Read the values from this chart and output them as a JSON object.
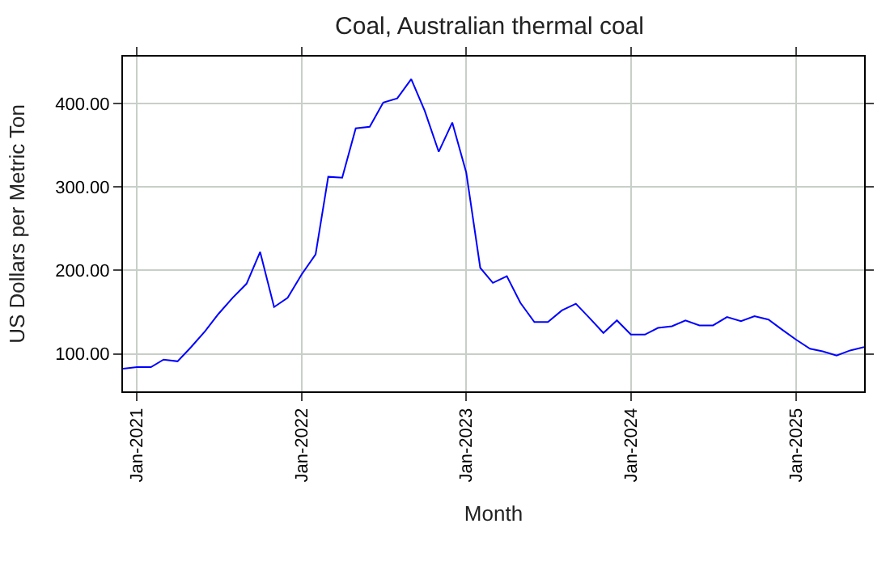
{
  "chart_data": {
    "type": "line",
    "title": "Coal, Australian thermal coal",
    "xlabel": "Month",
    "ylabel": "US Dollars per Metric Ton",
    "x": [
      "2020-12",
      "2021-01",
      "2021-02",
      "2021-03",
      "2021-04",
      "2021-05",
      "2021-06",
      "2021-07",
      "2021-08",
      "2021-09",
      "2021-10",
      "2021-11",
      "2021-12",
      "2022-01",
      "2022-02",
      "2022-03",
      "2022-04",
      "2022-05",
      "2022-06",
      "2022-07",
      "2022-08",
      "2022-09",
      "2022-10",
      "2022-11",
      "2022-12",
      "2023-01",
      "2023-02",
      "2023-03",
      "2023-04",
      "2023-05",
      "2023-06",
      "2023-07",
      "2023-08",
      "2023-09",
      "2023-10",
      "2023-11",
      "2023-12",
      "2024-01",
      "2024-02",
      "2024-03",
      "2024-04",
      "2024-05",
      "2024-06",
      "2024-07",
      "2024-08",
      "2024-09",
      "2024-10",
      "2024-11",
      "2024-12",
      "2025-01",
      "2025-02",
      "2025-03",
      "2025-04",
      "2025-05",
      "2025-06"
    ],
    "series": [
      {
        "color": "#0000ff",
        "values": [
          82,
          84,
          84,
          93,
          91,
          108,
          127,
          148,
          167,
          184,
          222,
          156,
          167,
          195,
          219,
          312,
          311,
          370,
          372,
          401,
          406,
          429,
          391,
          342,
          377,
          317,
          203,
          185,
          193,
          161,
          138,
          138,
          152,
          160,
          143,
          125,
          140,
          123,
          123,
          131,
          133,
          140,
          134,
          134,
          144,
          139,
          145,
          141,
          129,
          117,
          106,
          103,
          98,
          104,
          108
        ]
      }
    ],
    "xlim": [
      "2020-12",
      "2025-06"
    ],
    "ylim": [
      55,
      456
    ],
    "xticks": [
      {
        "value": "2021-01",
        "label": "Jan-2021"
      },
      {
        "value": "2022-01",
        "label": "Jan-2022"
      },
      {
        "value": "2023-01",
        "label": "Jan-2023"
      },
      {
        "value": "2024-01",
        "label": "Jan-2024"
      },
      {
        "value": "2025-01",
        "label": "Jan-2025"
      }
    ],
    "yticks": [
      {
        "value": 100,
        "label": "100.00"
      },
      {
        "value": 200,
        "label": "200.00"
      },
      {
        "value": 300,
        "label": "300.00"
      },
      {
        "value": 400,
        "label": "400.00"
      }
    ],
    "grid": true,
    "legend": false,
    "marker": "none",
    "line_style": "solid"
  }
}
